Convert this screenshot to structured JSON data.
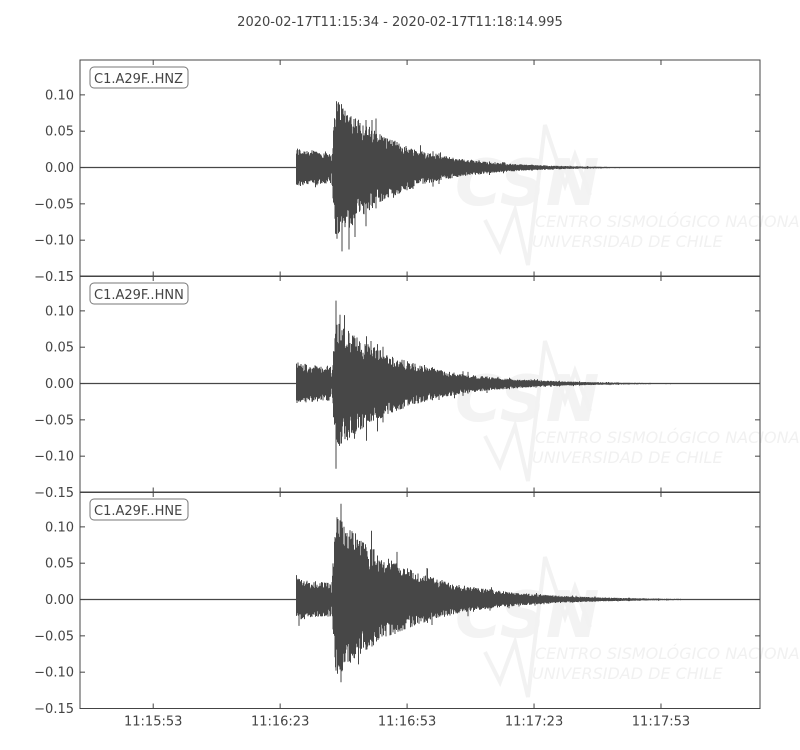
{
  "chart_data": {
    "type": "line",
    "title": "2020-02-17T11:15:34  -  2020-02-17T11:18:14.995",
    "xlim": [
      "11:15:35.7",
      "11:18:16.4"
    ],
    "x_ticks": [
      "11:15:53",
      "11:16:23",
      "11:16:53",
      "11:17:23",
      "11:17:53"
    ],
    "ylim": [
      -0.15,
      0.148
    ],
    "y_ticks": [
      0.1,
      0.05,
      0.0,
      -0.05,
      -0.1,
      -0.15
    ],
    "y_tick_labels": [
      "0.10",
      "0.05",
      "0.00",
      "−0.05",
      "−0.10",
      "−0.15"
    ],
    "grid": false,
    "line_color": "#474747",
    "series": [
      {
        "name": "C1.A29F..HNZ",
        "onset": "11:16:26.8",
        "p_amplitude": 0.028,
        "s_arrival": "11:16:35.0",
        "peak_max": 0.1,
        "peak_min": -0.105,
        "decay_seconds": 14,
        "noise": 0.0008
      },
      {
        "name": "C1.A29F..HNN",
        "onset": "11:16:26.8",
        "p_amplitude": 0.03,
        "s_arrival": "11:16:35.0",
        "peak_max": 0.088,
        "peak_min": -0.093,
        "decay_seconds": 16,
        "noise": 0.0008
      },
      {
        "name": "C1.A29F..HNE",
        "onset": "11:16:26.8",
        "p_amplitude": 0.03,
        "s_arrival": "11:16:35.0",
        "peak_max": 0.118,
        "peak_min": -0.108,
        "decay_seconds": 17,
        "noise": 0.0008
      }
    ]
  },
  "watermark": {
    "logo": "CSN",
    "line1": "CENTRO SISMOLÓGICO NACIONAL",
    "line2": "UNIVERSIDAD DE CHILE"
  }
}
